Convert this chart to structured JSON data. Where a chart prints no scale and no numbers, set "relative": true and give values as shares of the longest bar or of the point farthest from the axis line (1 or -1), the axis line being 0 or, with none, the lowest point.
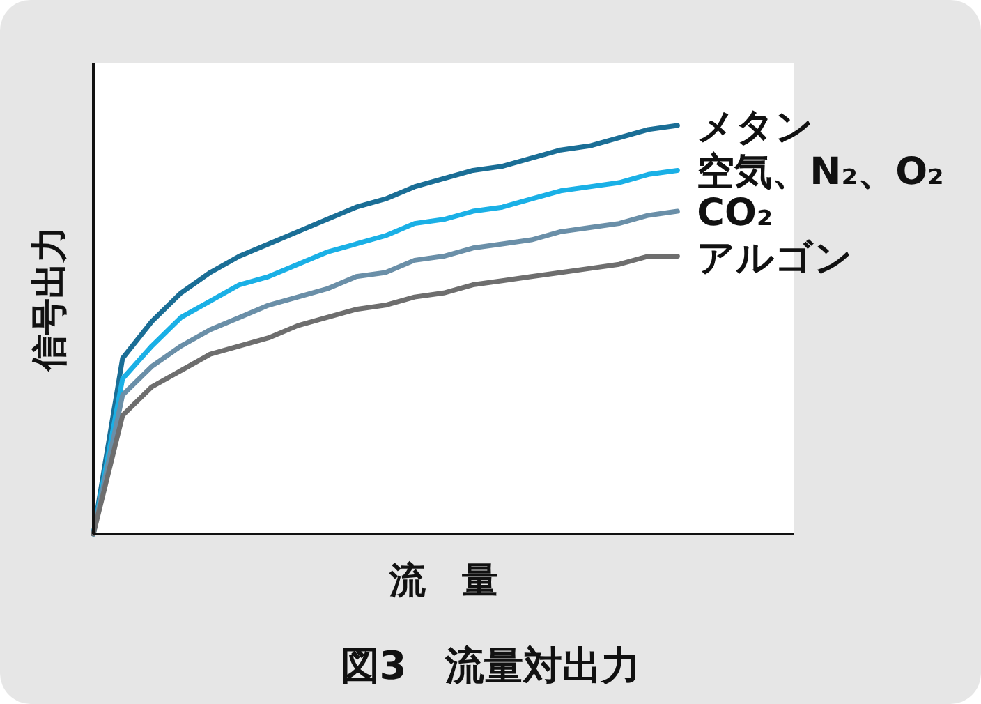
{
  "chart_data": {
    "type": "line",
    "title": "図3　流量対出力",
    "xlabel": "流　量",
    "ylabel": "信号出力",
    "relative": true,
    "categories": [
      null,
      null,
      null,
      null,
      null,
      null,
      null,
      null,
      null,
      null,
      null,
      null,
      null,
      null,
      null,
      null,
      null,
      null,
      null,
      null,
      null,
      null,
      null,
      null,
      null
    ],
    "series": [
      {
        "name": "メタン",
        "color": "#1a6e96",
        "values": [
          0,
          0.43,
          0.52,
          0.59,
          0.64,
          0.68,
          0.71,
          0.74,
          0.77,
          0.8,
          0.82,
          0.85,
          0.87,
          0.89,
          0.9,
          0.92,
          0.94,
          0.95,
          0.97,
          0.99,
          1,
          null,
          null,
          null,
          null
        ]
      },
      {
        "name": "空気、N₂、O₂",
        "color": "#1ab0e6",
        "values": [
          0,
          0.38,
          0.46,
          0.53,
          0.57,
          0.61,
          0.63,
          0.66,
          0.69,
          0.71,
          0.73,
          0.76,
          0.77,
          0.79,
          0.8,
          0.82,
          0.84,
          0.85,
          0.86,
          0.88,
          0.89,
          null,
          null,
          null,
          null
        ]
      },
      {
        "name": "CO₂",
        "color": "#6a8fa8",
        "values": [
          0,
          0.34,
          0.41,
          0.46,
          0.5,
          0.53,
          0.56,
          0.58,
          0.6,
          0.63,
          0.64,
          0.67,
          0.68,
          0.7,
          0.71,
          0.72,
          0.74,
          0.75,
          0.76,
          0.78,
          0.79,
          null,
          null,
          null,
          null
        ]
      },
      {
        "name": "アルゴン",
        "color": "#6e6e6e",
        "values": [
          0,
          0.29,
          0.36,
          0.4,
          0.44,
          0.46,
          0.48,
          0.51,
          0.53,
          0.55,
          0.56,
          0.58,
          0.59,
          0.61,
          0.62,
          0.63,
          0.64,
          0.65,
          0.66,
          0.68,
          0.68,
          null,
          null,
          null,
          null
        ]
      }
    ]
  }
}
